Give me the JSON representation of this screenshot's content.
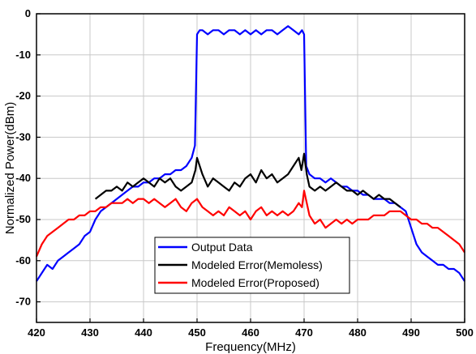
{
  "chart_data": {
    "type": "line",
    "title": "",
    "xlabel": "Frequency(MHz)",
    "ylabel": "Normalized Power(dBm)",
    "xlim": [
      420,
      500
    ],
    "ylim": [
      -75,
      0
    ],
    "xticks": [
      420,
      430,
      440,
      450,
      460,
      470,
      480,
      490,
      500
    ],
    "yticks": [
      0,
      -10,
      -20,
      -30,
      -40,
      -50,
      -60,
      -70
    ],
    "xtick_labels": [
      "420",
      "430",
      "440",
      "450",
      "460",
      "470",
      "480",
      "490",
      "500"
    ],
    "ytick_labels": [
      "0",
      "-10",
      "-20",
      "-30",
      "-40",
      "-50",
      "-60",
      "-70"
    ],
    "grid": true,
    "legend_position": "bottom-center",
    "series": [
      {
        "name": "Output Data",
        "color": "#0000ff",
        "x": [
          420,
          421,
          422,
          423,
          424,
          425,
          426,
          427,
          428,
          429,
          430,
          431,
          432,
          433,
          434,
          435,
          436,
          437,
          438,
          439,
          440,
          441,
          442,
          443,
          444,
          445,
          446,
          447,
          448,
          449,
          449.6,
          450,
          450.5,
          451,
          452,
          453,
          454,
          455,
          456,
          457,
          458,
          459,
          460,
          461,
          462,
          463,
          464,
          465,
          466,
          467,
          468,
          469,
          469.6,
          470,
          470.4,
          471,
          472,
          473,
          474,
          475,
          476,
          477,
          478,
          479,
          480,
          481,
          482,
          483,
          484,
          485,
          486,
          487,
          488,
          489,
          490,
          491,
          492,
          493,
          494,
          495,
          496,
          497,
          498,
          499,
          500
        ],
        "y": [
          -65,
          -63,
          -61,
          -62,
          -60,
          -59,
          -58,
          -57,
          -56,
          -54,
          -53,
          -50,
          -48,
          -47,
          -46,
          -45,
          -44,
          -43,
          -42,
          -42,
          -41,
          -41,
          -40,
          -40,
          -39,
          -39,
          -38,
          -38,
          -37,
          -35,
          -32,
          -5,
          -4,
          -4,
          -5,
          -4,
          -4,
          -5,
          -4,
          -4,
          -5,
          -4,
          -5,
          -4,
          -5,
          -4,
          -4,
          -5,
          -4,
          -3,
          -4,
          -5,
          -4,
          -5,
          -37,
          -39,
          -40,
          -40,
          -41,
          -40,
          -41,
          -42,
          -42,
          -43,
          -43,
          -44,
          -44,
          -45,
          -45,
          -45,
          -46,
          -46,
          -47,
          -48,
          -52,
          -56,
          -58,
          -59,
          -60,
          -61,
          -61,
          -62,
          -62,
          -63,
          -65
        ]
      },
      {
        "name": "Modeled Error(Memoless)",
        "color": "#000000",
        "x": [
          431,
          432,
          433,
          434,
          435,
          436,
          437,
          438,
          439,
          440,
          441,
          442,
          443,
          444,
          445,
          446,
          447,
          448,
          449,
          449.7,
          450,
          450.5,
          451,
          452,
          453,
          454,
          455,
          456,
          457,
          458,
          459,
          460,
          461,
          462,
          463,
          464,
          465,
          466,
          467,
          468,
          469,
          469.5,
          470,
          470.5,
          471,
          472,
          473,
          474,
          475,
          476,
          477,
          478,
          479,
          480,
          481,
          482,
          483,
          484,
          485,
          486,
          487,
          488
        ],
        "y": [
          -45,
          -44,
          -43,
          -43,
          -42,
          -43,
          -41,
          -42,
          -41,
          -40,
          -41,
          -42,
          -40,
          -41,
          -40,
          -42,
          -43,
          -42,
          -41,
          -38,
          -35,
          -37,
          -39,
          -42,
          -40,
          -41,
          -42,
          -43,
          -41,
          -42,
          -40,
          -39,
          -41,
          -38,
          -40,
          -39,
          -41,
          -40,
          -39,
          -37,
          -35,
          -38,
          -34,
          -39,
          -42,
          -43,
          -42,
          -43,
          -42,
          -41,
          -42,
          -43,
          -43,
          -44,
          -43,
          -44,
          -45,
          -44,
          -45,
          -45,
          -46,
          -47
        ]
      },
      {
        "name": "Modeled Error(Proposed)",
        "color": "#ff0000",
        "x": [
          420,
          421,
          422,
          423,
          424,
          425,
          426,
          427,
          428,
          429,
          430,
          431,
          432,
          433,
          434,
          435,
          436,
          437,
          438,
          439,
          440,
          441,
          442,
          443,
          444,
          445,
          446,
          447,
          448,
          449,
          450,
          451,
          452,
          453,
          454,
          455,
          456,
          457,
          458,
          459,
          460,
          461,
          462,
          463,
          464,
          465,
          466,
          467,
          468,
          469,
          469.6,
          470,
          471,
          472,
          473,
          474,
          475,
          476,
          477,
          478,
          479,
          480,
          481,
          482,
          483,
          484,
          485,
          486,
          487,
          488,
          489,
          490,
          491,
          492,
          493,
          494,
          495,
          496,
          497,
          498,
          499,
          500
        ],
        "y": [
          -59,
          -56,
          -54,
          -53,
          -52,
          -51,
          -50,
          -50,
          -49,
          -49,
          -48,
          -48,
          -47,
          -47,
          -46,
          -46,
          -46,
          -45,
          -46,
          -45,
          -45,
          -46,
          -45,
          -46,
          -47,
          -46,
          -45,
          -47,
          -48,
          -46,
          -45,
          -47,
          -48,
          -49,
          -48,
          -49,
          -47,
          -48,
          -49,
          -48,
          -50,
          -48,
          -47,
          -49,
          -48,
          -49,
          -48,
          -49,
          -48,
          -46,
          -47,
          -43,
          -49,
          -51,
          -50,
          -52,
          -51,
          -50,
          -51,
          -50,
          -51,
          -50,
          -50,
          -50,
          -49,
          -49,
          -49,
          -48,
          -48,
          -48,
          -49,
          -50,
          -50,
          -51,
          -51,
          -52,
          -52,
          -53,
          -54,
          -55,
          -56,
          -58
        ]
      }
    ]
  }
}
